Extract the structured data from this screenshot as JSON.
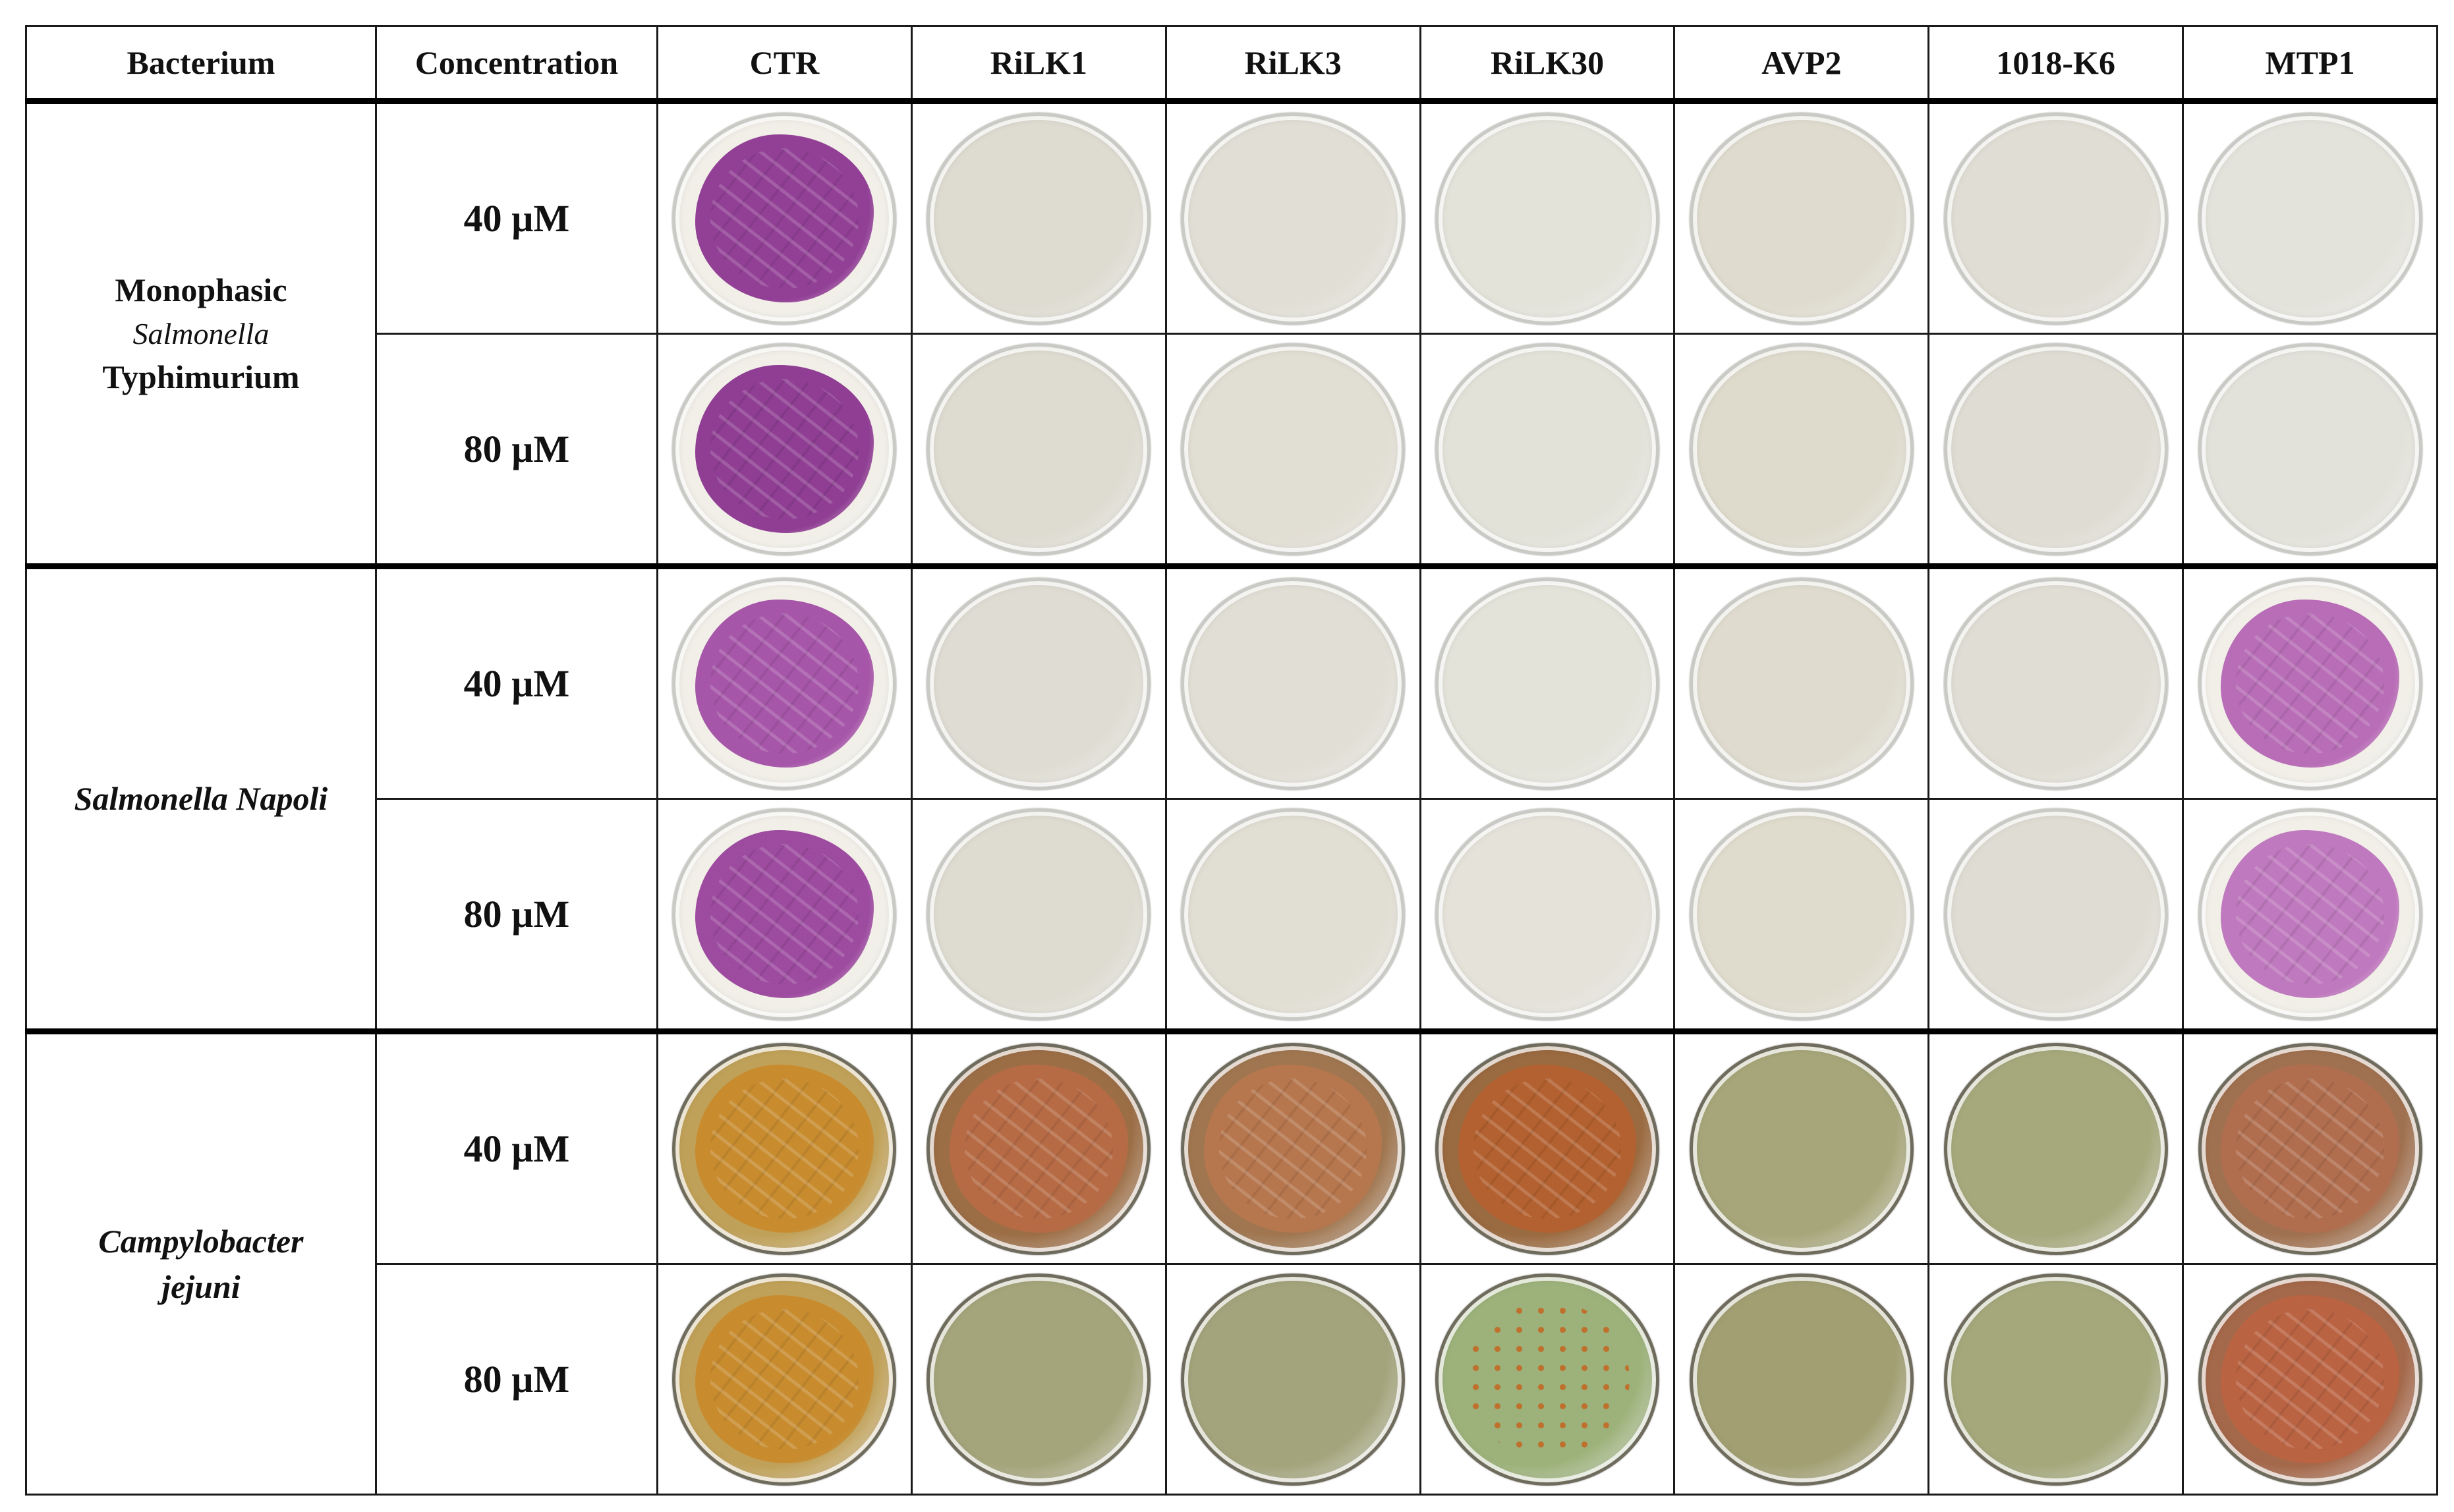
{
  "table": {
    "headers": [
      "Bacterium",
      "Concentration",
      "CTR",
      "RiLK1",
      "RiLK3",
      "RiLK30",
      "AVP2",
      "1018-K6",
      "MTP1"
    ],
    "groups": [
      {
        "bacterium_lines": [
          {
            "text": "Monophasic",
            "style": "normal"
          },
          {
            "text": "Salmonella",
            "style": "italic-sub"
          },
          {
            "text": "Typhimurium",
            "style": "normal"
          }
        ],
        "rows": [
          {
            "concentration": "40 µM",
            "plates": [
              {
                "treatment": "CTR",
                "medium": "#f1efe7",
                "growth": "purple",
                "growth_color": "#8b3390"
              },
              {
                "treatment": "RiLK1",
                "medium": "#dedcd1",
                "growth": "none"
              },
              {
                "treatment": "RiLK3",
                "medium": "#e1dfd5",
                "growth": "none"
              },
              {
                "treatment": "RiLK30",
                "medium": "#e4e3da",
                "growth": "none"
              },
              {
                "treatment": "AVP2",
                "medium": "#dfdccf",
                "growth": "none"
              },
              {
                "treatment": "1018-K6",
                "medium": "#e0ded4",
                "growth": "none"
              },
              {
                "treatment": "MTP1",
                "medium": "#e4e3db",
                "growth": "none"
              }
            ]
          },
          {
            "concentration": "80 µM",
            "plates": [
              {
                "treatment": "CTR",
                "medium": "#f1efe7",
                "growth": "purple",
                "growth_color": "#88318d"
              },
              {
                "treatment": "RiLK1",
                "medium": "#dedcd1",
                "growth": "none"
              },
              {
                "treatment": "RiLK3",
                "medium": "#e1ded3",
                "growth": "none"
              },
              {
                "treatment": "RiLK30",
                "medium": "#e3e2d9",
                "growth": "none"
              },
              {
                "treatment": "AVP2",
                "medium": "#dedbcd",
                "growth": "none"
              },
              {
                "treatment": "1018-K6",
                "medium": "#dfddd3",
                "growth": "none"
              },
              {
                "treatment": "MTP1",
                "medium": "#e3e2da",
                "growth": "none"
              }
            ]
          }
        ]
      },
      {
        "bacterium_lines": [
          {
            "text": "Salmonella Napoli",
            "style": "italic"
          }
        ],
        "rows": [
          {
            "concentration": "40 µM",
            "plates": [
              {
                "treatment": "CTR",
                "medium": "#f1efe7",
                "growth": "purple",
                "growth_color": "#a14ba4"
              },
              {
                "treatment": "RiLK1",
                "medium": "#dfddd3",
                "growth": "none"
              },
              {
                "treatment": "RiLK3",
                "medium": "#e1dfd5",
                "growth": "none"
              },
              {
                "treatment": "RiLK30",
                "medium": "#e4e3da",
                "growth": "none"
              },
              {
                "treatment": "AVP2",
                "medium": "#dfdccf",
                "growth": "none"
              },
              {
                "treatment": "1018-K6",
                "medium": "#e0ded4",
                "growth": "none"
              },
              {
                "treatment": "MTP1",
                "medium": "#f1efe7",
                "growth": "purple",
                "growth_color": "#b463b3"
              }
            ]
          },
          {
            "concentration": "80 µM",
            "plates": [
              {
                "treatment": "CTR",
                "medium": "#f1efe7",
                "growth": "purple",
                "growth_color": "#973f9a"
              },
              {
                "treatment": "RiLK1",
                "medium": "#dedcd1",
                "growth": "none"
              },
              {
                "treatment": "RiLK3",
                "medium": "#e1ded3",
                "growth": "none"
              },
              {
                "treatment": "RiLK30",
                "medium": "#e4e2d9",
                "growth": "none"
              },
              {
                "treatment": "AVP2",
                "medium": "#dfdbcd",
                "growth": "none"
              },
              {
                "treatment": "1018-K6",
                "medium": "#dfddd3",
                "growth": "none"
              },
              {
                "treatment": "MTP1",
                "medium": "#f1efe7",
                "growth": "purple",
                "growth_color": "#bb70bb"
              }
            ]
          }
        ]
      },
      {
        "bacterium_lines": [
          {
            "text": "Campylobacter",
            "style": "italic"
          },
          {
            "text": "jejuni",
            "style": "italic"
          }
        ],
        "rows": [
          {
            "concentration": "40 µM",
            "plates": [
              {
                "treatment": "CTR",
                "medium": "#c0a159",
                "growth": "orange",
                "growth_color": "#c98a2c"
              },
              {
                "treatment": "RiLK1",
                "medium": "#9c6e46",
                "growth": "orange",
                "growth_color": "#b86b45"
              },
              {
                "treatment": "RiLK3",
                "medium": "#9f7650",
                "growth": "orange",
                "growth_color": "#b8774e"
              },
              {
                "treatment": "RiLK30",
                "medium": "#9a6a40",
                "growth": "orange",
                "growth_color": "#b5602f"
              },
              {
                "treatment": "AVP2",
                "medium": "#a7a67a",
                "growth": "none"
              },
              {
                "treatment": "1018-K6",
                "medium": "#a6a97c",
                "growth": "none"
              },
              {
                "treatment": "MTP1",
                "medium": "#a07150",
                "growth": "orange",
                "growth_color": "#b26e4f"
              }
            ]
          },
          {
            "concentration": "80 µM",
            "plates": [
              {
                "treatment": "CTR",
                "medium": "#c0a159",
                "growth": "orange",
                "growth_color": "#c98a2c"
              },
              {
                "treatment": "RiLK1",
                "medium": "#a5a57c",
                "growth": "none"
              },
              {
                "treatment": "RiLK3",
                "medium": "#a3a47c",
                "growth": "none"
              },
              {
                "treatment": "RiLK30",
                "medium": "#9db27b",
                "growth": "sparse",
                "growth_color": "#c4651f"
              },
              {
                "treatment": "AVP2",
                "medium": "#a29f73",
                "growth": "none"
              },
              {
                "treatment": "1018-K6",
                "medium": "#a4a87b",
                "growth": "none"
              },
              {
                "treatment": "MTP1",
                "medium": "#a4684a",
                "growth": "orange",
                "growth_color": "#bc6342"
              }
            ]
          }
        ]
      }
    ]
  }
}
